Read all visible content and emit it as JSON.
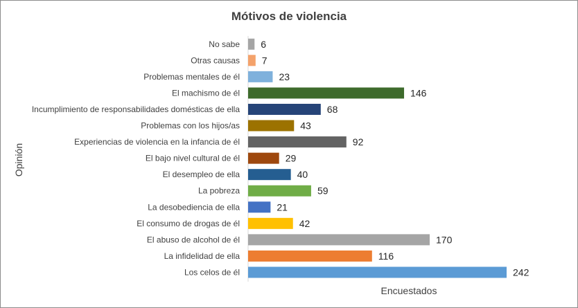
{
  "chart_data": {
    "type": "bar",
    "orientation": "horizontal",
    "title": "Mótivos de violencia",
    "xlabel": "Encuestados",
    "ylabel": "Opinión",
    "grid": false,
    "legend": "none",
    "xlim": [
      0,
      242
    ],
    "categories": [
      "No sabe",
      "Otras causas",
      "Problemas mentales de él",
      "El machismo de él",
      "Incumplimiento de responsabilidades domésticas de ella",
      "Problemas con los hijos/as",
      "Experiencias de violencia en la infancia de él",
      "El bajo nivel cultural de él",
      "El desempleo de ella",
      "La pobreza",
      "La desobediencia de ella",
      "El consumo de drogas de él",
      "El abuso de alcohol de él",
      "La infidelidad de ella",
      "Los celos de él"
    ],
    "values": [
      6,
      7,
      23,
      146,
      68,
      43,
      92,
      29,
      40,
      59,
      21,
      42,
      170,
      116,
      242
    ],
    "colors": [
      "#a5a5a5",
      "#f4a26b",
      "#7fb1dc",
      "#3e6b2c",
      "#264478",
      "#9c7200",
      "#636363",
      "#9e480e",
      "#255e91",
      "#70ad47",
      "#4472c4",
      "#ffc000",
      "#a5a5a5",
      "#ed7d31",
      "#5b9bd5"
    ]
  }
}
